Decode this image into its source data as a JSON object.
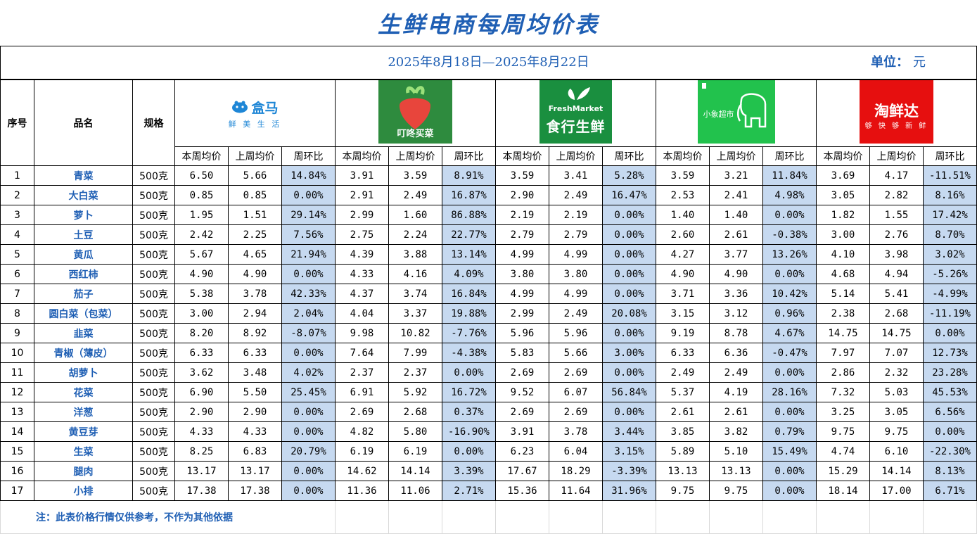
{
  "title": "生鲜电商每周均价表",
  "date_range": "2025年8月18日—2025年8月22日",
  "unit_label": "单位：",
  "unit_value": "元",
  "headers": {
    "index": "序号",
    "name": "品名",
    "spec": "规格",
    "this_week": "本周均价",
    "last_week": "上周均价",
    "wow": "周环比"
  },
  "platforms": [
    {
      "name": "盒马",
      "tagline": "鲜 美 生 活",
      "color": "#1e86d6"
    },
    {
      "name": "叮咚买菜",
      "color": "#2e8b3e"
    },
    {
      "name": "食行生鲜",
      "en": "FreshMarket",
      "color": "#1a8f3f"
    },
    {
      "name": "小象超市",
      "color": "#22c24d"
    },
    {
      "name": "淘鲜达",
      "tagline": "够 快 够 新 鲜",
      "color": "#e60f0f"
    }
  ],
  "rows": [
    {
      "idx": "1",
      "name": "青菜",
      "spec": "500克",
      "p": [
        [
          "6.50",
          "5.66",
          "14.84%"
        ],
        [
          "3.91",
          "3.59",
          "8.91%"
        ],
        [
          "3.59",
          "3.41",
          "5.28%"
        ],
        [
          "3.59",
          "3.21",
          "11.84%"
        ],
        [
          "3.69",
          "4.17",
          "-11.51%"
        ]
      ]
    },
    {
      "idx": "2",
      "name": "大白菜",
      "spec": "500克",
      "p": [
        [
          "0.85",
          "0.85",
          "0.00%"
        ],
        [
          "2.91",
          "2.49",
          "16.87%"
        ],
        [
          "2.90",
          "2.49",
          "16.47%"
        ],
        [
          "2.53",
          "2.41",
          "4.98%"
        ],
        [
          "3.05",
          "2.82",
          "8.16%"
        ]
      ]
    },
    {
      "idx": "3",
      "name": "萝卜",
      "spec": "500克",
      "p": [
        [
          "1.95",
          "1.51",
          "29.14%"
        ],
        [
          "2.99",
          "1.60",
          "86.88%"
        ],
        [
          "2.19",
          "2.19",
          "0.00%"
        ],
        [
          "1.40",
          "1.40",
          "0.00%"
        ],
        [
          "1.82",
          "1.55",
          "17.42%"
        ]
      ]
    },
    {
      "idx": "4",
      "name": "土豆",
      "spec": "500克",
      "p": [
        [
          "2.42",
          "2.25",
          "7.56%"
        ],
        [
          "2.75",
          "2.24",
          "22.77%"
        ],
        [
          "2.79",
          "2.79",
          "0.00%"
        ],
        [
          "2.60",
          "2.61",
          "-0.38%"
        ],
        [
          "3.00",
          "2.76",
          "8.70%"
        ]
      ]
    },
    {
      "idx": "5",
      "name": "黄瓜",
      "spec": "500克",
      "p": [
        [
          "5.67",
          "4.65",
          "21.94%"
        ],
        [
          "4.39",
          "3.88",
          "13.14%"
        ],
        [
          "4.99",
          "4.99",
          "0.00%"
        ],
        [
          "4.27",
          "3.77",
          "13.26%"
        ],
        [
          "4.10",
          "3.98",
          "3.02%"
        ]
      ]
    },
    {
      "idx": "6",
      "name": "西红柿",
      "spec": "500克",
      "p": [
        [
          "4.90",
          "4.90",
          "0.00%"
        ],
        [
          "4.33",
          "4.16",
          "4.09%"
        ],
        [
          "3.80",
          "3.80",
          "0.00%"
        ],
        [
          "4.90",
          "4.90",
          "0.00%"
        ],
        [
          "4.68",
          "4.94",
          "-5.26%"
        ]
      ]
    },
    {
      "idx": "7",
      "name": "茄子",
      "spec": "500克",
      "p": [
        [
          "5.38",
          "3.78",
          "42.33%"
        ],
        [
          "4.37",
          "3.74",
          "16.84%"
        ],
        [
          "4.99",
          "4.99",
          "0.00%"
        ],
        [
          "3.71",
          "3.36",
          "10.42%"
        ],
        [
          "5.14",
          "5.41",
          "-4.99%"
        ]
      ]
    },
    {
      "idx": "8",
      "name": "圆白菜（包菜）",
      "spec": "500克",
      "p": [
        [
          "3.00",
          "2.94",
          "2.04%"
        ],
        [
          "4.04",
          "3.37",
          "19.88%"
        ],
        [
          "2.99",
          "2.49",
          "20.08%"
        ],
        [
          "3.15",
          "3.12",
          "0.96%"
        ],
        [
          "2.38",
          "2.68",
          "-11.19%"
        ]
      ]
    },
    {
      "idx": "9",
      "name": "韭菜",
      "spec": "500克",
      "p": [
        [
          "8.20",
          "8.92",
          "-8.07%"
        ],
        [
          "9.98",
          "10.82",
          "-7.76%"
        ],
        [
          "5.96",
          "5.96",
          "0.00%"
        ],
        [
          "9.19",
          "8.78",
          "4.67%"
        ],
        [
          "14.75",
          "14.75",
          "0.00%"
        ]
      ]
    },
    {
      "idx": "10",
      "name": "青椒（薄皮）",
      "spec": "500克",
      "p": [
        [
          "6.33",
          "6.33",
          "0.00%"
        ],
        [
          "7.64",
          "7.99",
          "-4.38%"
        ],
        [
          "5.83",
          "5.66",
          "3.00%"
        ],
        [
          "6.33",
          "6.36",
          "-0.47%"
        ],
        [
          "7.97",
          "7.07",
          "12.73%"
        ]
      ]
    },
    {
      "idx": "11",
      "name": "胡萝卜",
      "spec": "500克",
      "p": [
        [
          "3.62",
          "3.48",
          "4.02%"
        ],
        [
          "2.37",
          "2.37",
          "0.00%"
        ],
        [
          "2.69",
          "2.69",
          "0.00%"
        ],
        [
          "2.49",
          "2.49",
          "0.00%"
        ],
        [
          "2.86",
          "2.32",
          "23.28%"
        ]
      ]
    },
    {
      "idx": "12",
      "name": "花菜",
      "spec": "500克",
      "p": [
        [
          "6.90",
          "5.50",
          "25.45%"
        ],
        [
          "6.91",
          "5.92",
          "16.72%"
        ],
        [
          "9.52",
          "6.07",
          "56.84%"
        ],
        [
          "5.37",
          "4.19",
          "28.16%"
        ],
        [
          "7.32",
          "5.03",
          "45.53%"
        ]
      ]
    },
    {
      "idx": "13",
      "name": "洋葱",
      "spec": "500克",
      "p": [
        [
          "2.90",
          "2.90",
          "0.00%"
        ],
        [
          "2.69",
          "2.68",
          "0.37%"
        ],
        [
          "2.69",
          "2.69",
          "0.00%"
        ],
        [
          "2.61",
          "2.61",
          "0.00%"
        ],
        [
          "3.25",
          "3.05",
          "6.56%"
        ]
      ]
    },
    {
      "idx": "14",
      "name": "黄豆芽",
      "spec": "500克",
      "p": [
        [
          "4.33",
          "4.33",
          "0.00%"
        ],
        [
          "4.82",
          "5.80",
          "-16.90%"
        ],
        [
          "3.91",
          "3.78",
          "3.44%"
        ],
        [
          "3.85",
          "3.82",
          "0.79%"
        ],
        [
          "9.75",
          "9.75",
          "0.00%"
        ]
      ]
    },
    {
      "idx": "15",
      "name": "生菜",
      "spec": "500克",
      "p": [
        [
          "8.25",
          "6.83",
          "20.79%"
        ],
        [
          "6.19",
          "6.19",
          "0.00%"
        ],
        [
          "6.23",
          "6.04",
          "3.15%"
        ],
        [
          "5.89",
          "5.10",
          "15.49%"
        ],
        [
          "4.74",
          "6.10",
          "-22.30%"
        ]
      ]
    },
    {
      "idx": "16",
      "name": "腿肉",
      "spec": "500克",
      "p": [
        [
          "13.17",
          "13.17",
          "0.00%"
        ],
        [
          "14.62",
          "14.14",
          "3.39%"
        ],
        [
          "17.67",
          "18.29",
          "-3.39%"
        ],
        [
          "13.13",
          "13.13",
          "0.00%"
        ],
        [
          "15.29",
          "14.14",
          "8.13%"
        ]
      ]
    },
    {
      "idx": "17",
      "name": "小排",
      "spec": "500克",
      "p": [
        [
          "17.38",
          "17.38",
          "0.00%"
        ],
        [
          "11.36",
          "11.06",
          "2.71%"
        ],
        [
          "15.36",
          "11.64",
          "31.96%"
        ],
        [
          "9.75",
          "9.75",
          "0.00%"
        ],
        [
          "18.14",
          "17.00",
          "6.71%"
        ]
      ]
    }
  ],
  "note": "注：此表价格行情仅供参考，不作为其他依据"
}
